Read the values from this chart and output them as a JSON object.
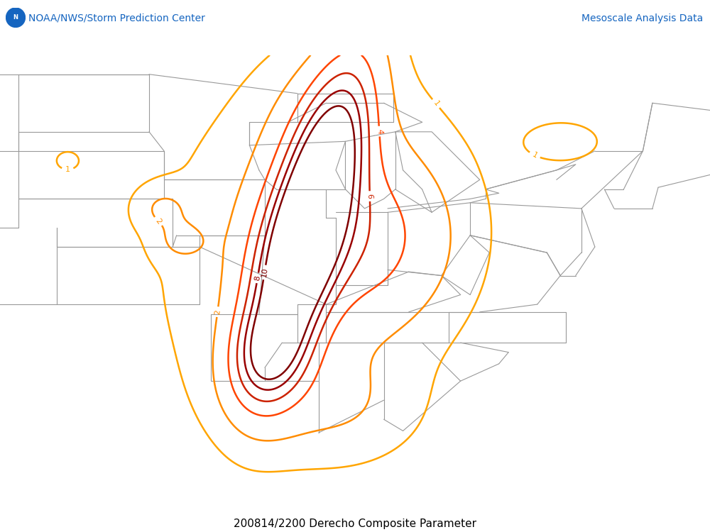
{
  "title": "200814/2200 Derecho Composite Parameter",
  "header_left": "NOAA/NWS/Storm Prediction Center",
  "header_right": "Mesoscale Analysis Data",
  "header_color": "#1565C0",
  "bg_color": "#FFFFFF",
  "border_color": "#999999",
  "contour_levels": [
    1,
    2,
    4,
    6,
    8,
    10
  ],
  "contour_colors": {
    "1": "#FFA500",
    "2": "#FF8C00",
    "4": "#FF4500",
    "6": "#CC2200",
    "8": "#990000",
    "10": "#800000"
  },
  "map_extent": [
    -105,
    -68,
    28,
    50
  ],
  "title_fontsize": 11,
  "header_fontsize": 10,
  "contour_linewidth": 1.8,
  "border_linewidth": 0.8,
  "label_fontsize": 8,
  "fig_width": 10.0,
  "fig_height": 7.5,
  "dpi": 100
}
